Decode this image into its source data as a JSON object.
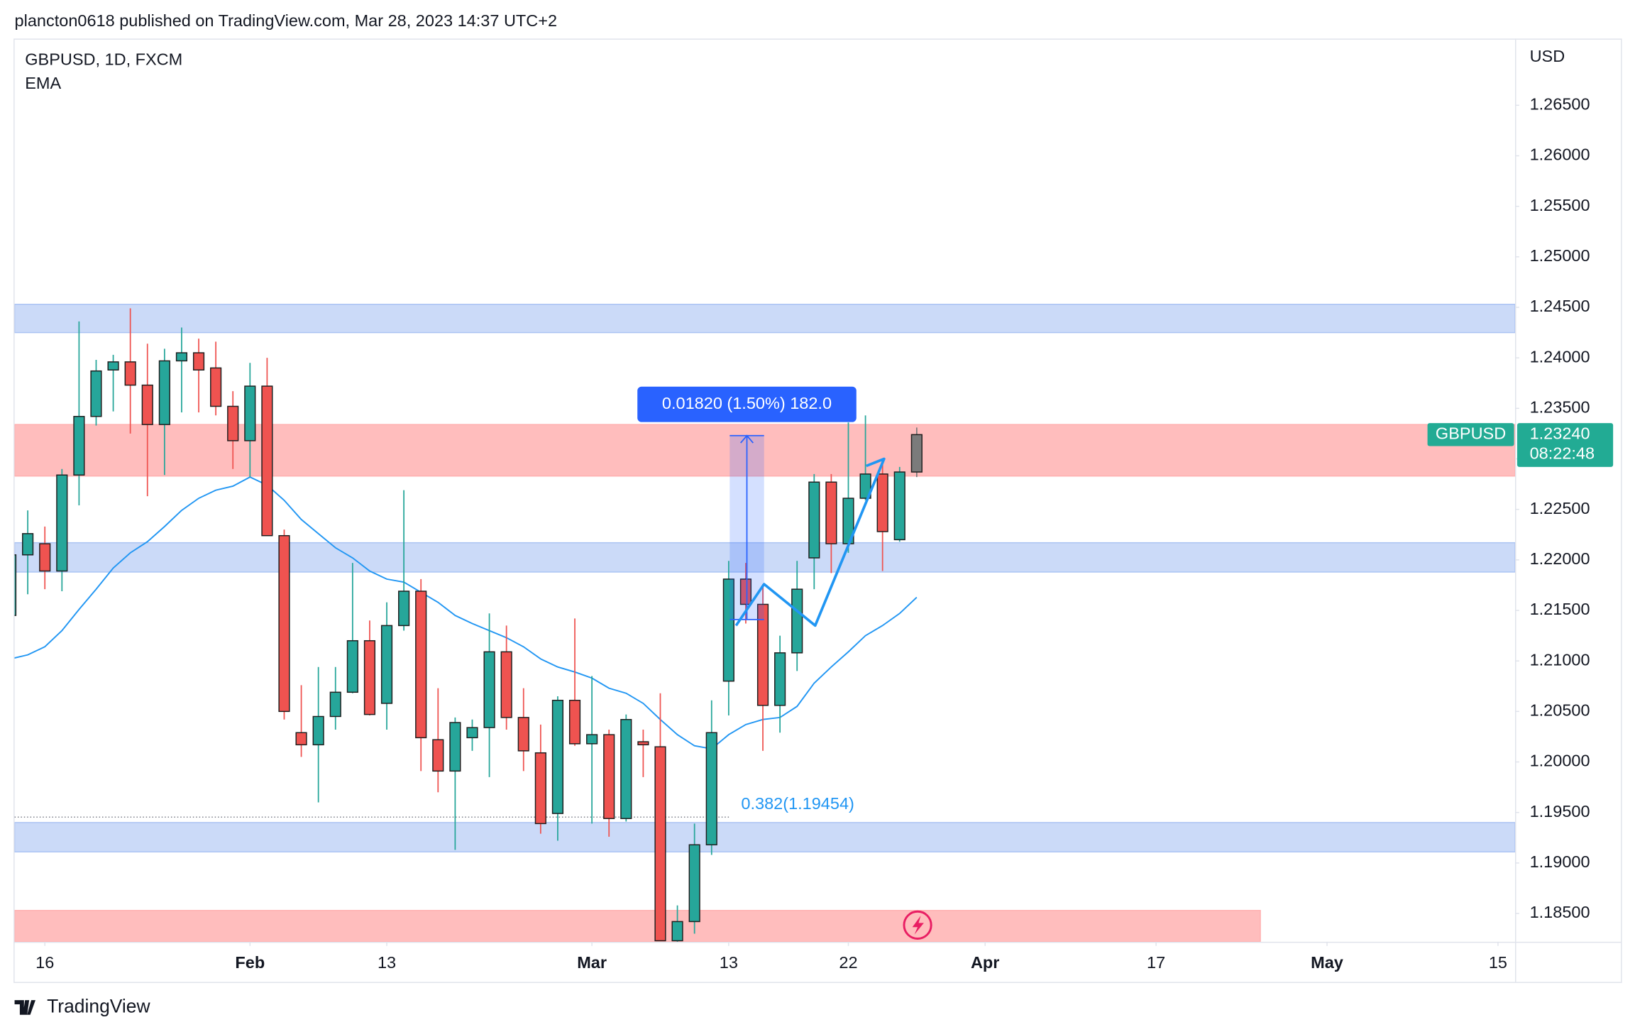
{
  "chart_data": {
    "type": "candlestick",
    "header": "plancton0618 published on TradingView.com, Mar 28, 2023 14:37 UTC+2",
    "title": "GBPUSD, 1D, FXCM",
    "indicator": "EMA",
    "currency": "USD",
    "brand": "TradingView",
    "categories": [
      null,
      null,
      "16",
      null,
      null,
      null,
      null,
      null,
      null,
      null,
      null,
      null,
      null,
      null,
      "Feb",
      null,
      null,
      null,
      null,
      null,
      null,
      null,
      "13",
      null,
      null,
      null,
      null,
      null,
      null,
      null,
      null,
      null,
      null,
      null,
      "Mar",
      null,
      null,
      null,
      null,
      null,
      null,
      null,
      "13",
      null,
      null,
      null,
      null,
      null,
      null,
      "22",
      null,
      null,
      null,
      null,
      null,
      null,
      null,
      "Apr",
      null,
      null,
      null,
      null,
      null,
      null,
      null,
      null,
      null,
      "17",
      null,
      null,
      null,
      null,
      null,
      null,
      null,
      null,
      null,
      "May",
      null,
      null,
      null,
      null,
      null,
      null,
      null,
      null,
      null,
      "15"
    ],
    "open": [
      1.2145,
      1.2205,
      1.2216,
      1.2189,
      1.2284,
      1.2342,
      1.2388,
      1.2396,
      1.2373,
      1.2334,
      1.2397,
      1.2405,
      1.239,
      1.2352,
      1.2318,
      1.2372,
      1.2224,
      1.2029,
      1.2017,
      1.2045,
      1.2069,
      1.212,
      1.2058,
      1.2135,
      1.2169,
      1.2022,
      1.1991,
      1.2024,
      1.2034,
      1.2109,
      1.2044,
      1.2009,
      1.1949,
      1.2061,
      1.2018,
      1.2027,
      1.1944,
      1.202,
      1.2015,
      1.1823,
      1.1842,
      1.1918,
      1.208,
      1.2181,
      1.2156,
      1.2056,
      1.2108,
      1.2202,
      1.2277,
      1.2216,
      1.2261,
      1.2285,
      1.222,
      1.2287,
      null,
      null,
      null,
      null,
      null,
      null,
      null,
      null,
      null,
      null,
      null,
      null,
      null,
      null,
      null,
      null,
      null,
      null,
      null,
      null,
      null,
      null,
      null,
      null,
      null,
      null,
      null,
      null,
      null,
      null,
      null,
      null,
      null,
      null
    ],
    "high": [
      1.2218,
      1.2249,
      1.2233,
      1.229,
      1.2436,
      1.2398,
      1.2403,
      1.2449,
      1.2414,
      1.2409,
      1.243,
      1.2419,
      1.2416,
      1.2367,
      1.2395,
      1.24,
      1.223,
      1.2076,
      1.2094,
      1.2094,
      1.2197,
      1.214,
      1.2158,
      1.2269,
      1.2181,
      1.2073,
      1.2044,
      1.2042,
      1.2147,
      1.2135,
      1.2073,
      1.2037,
      1.2065,
      1.2142,
      1.2085,
      1.2032,
      1.2047,
      1.2032,
      1.2068,
      1.1858,
      1.1939,
      1.2061,
      1.2199,
      1.2197,
      1.2176,
      1.2125,
      1.2199,
      1.2285,
      1.2285,
      1.2336,
      1.2343,
      1.23,
      1.2292,
      1.2331,
      null,
      null,
      null,
      null,
      null,
      null,
      null,
      null,
      null,
      null,
      null,
      null,
      null,
      null,
      null,
      null,
      null,
      null,
      null,
      null,
      null,
      null,
      null,
      null,
      null,
      null,
      null,
      null,
      null,
      null,
      null,
      null,
      null,
      null
    ],
    "low": [
      1.214,
      1.2166,
      1.2171,
      1.2169,
      1.2254,
      1.2333,
      1.2347,
      1.2325,
      1.2263,
      1.2284,
      1.2346,
      1.2346,
      1.2343,
      1.229,
      1.2282,
      1.2224,
      1.2042,
      1.2005,
      1.196,
      1.2032,
      1.2068,
      1.2046,
      1.2032,
      1.213,
      1.1991,
      1.197,
      1.1913,
      1.2011,
      1.1985,
      1.2032,
      1.1991,
      1.1929,
      1.1922,
      1.2016,
      1.1939,
      1.1926,
      1.1941,
      1.1985,
      1.1823,
      1.1821,
      1.183,
      1.1908,
      1.2046,
      1.2137,
      1.2011,
      1.2029,
      1.209,
      1.2171,
      1.2187,
      1.2207,
      1.2259,
      1.2189,
      1.2218,
      1.2282,
      null,
      null,
      null,
      null,
      null,
      null,
      null,
      null,
      null,
      null,
      null,
      null,
      null,
      null,
      null,
      null,
      null,
      null,
      null,
      null,
      null,
      null,
      null,
      null,
      null,
      null,
      null,
      null,
      null,
      null,
      null,
      null,
      null,
      null
    ],
    "close": [
      1.2205,
      1.2226,
      1.2189,
      1.2284,
      1.2342,
      1.2387,
      1.2396,
      1.2373,
      1.2334,
      1.2397,
      1.2405,
      1.2388,
      1.2352,
      1.2318,
      1.2372,
      1.2224,
      1.205,
      1.2017,
      1.2045,
      1.2069,
      1.212,
      1.2047,
      1.2135,
      1.2169,
      1.2024,
      1.1991,
      1.2039,
      1.2034,
      1.2109,
      1.2044,
      1.2011,
      1.1939,
      1.2061,
      1.2018,
      1.2027,
      1.1944,
      1.2042,
      1.2017,
      1.1823,
      1.1842,
      1.1918,
      1.2029,
      1.2181,
      1.2156,
      1.2056,
      1.2108,
      1.2171,
      1.2277,
      1.2216,
      1.2261,
      1.2285,
      1.2228,
      1.2287,
      1.2324,
      null,
      null,
      null,
      null,
      null,
      null,
      null,
      null,
      null,
      null,
      null,
      null,
      null,
      null,
      null,
      null,
      null,
      null,
      null,
      null,
      null,
      null,
      null,
      null,
      null,
      null,
      null,
      null,
      null,
      null,
      null,
      null,
      null,
      null
    ],
    "ema": {
      "color": "#2196f3",
      "values": [
        1.2102,
        1.2106,
        1.2114,
        1.213,
        1.2151,
        1.2171,
        1.2192,
        1.2207,
        1.2218,
        1.2233,
        1.2249,
        1.2261,
        1.2269,
        1.2273,
        1.2282,
        1.2274,
        1.2259,
        1.224,
        1.2226,
        1.2212,
        1.2202,
        1.2189,
        1.2181,
        1.2178,
        1.2168,
        1.2158,
        1.2145,
        1.2137,
        1.213,
        1.2123,
        1.2114,
        1.2102,
        1.2094,
        1.2089,
        1.2083,
        1.2073,
        1.2068,
        1.2058,
        1.2042,
        1.2027,
        1.2016,
        1.2013,
        1.2027,
        1.2037,
        1.2042,
        1.2044,
        1.2055,
        1.2078,
        1.2094,
        1.2109,
        1.2125,
        1.2135,
        1.2147,
        1.2163,
        null,
        null,
        null,
        null,
        null,
        null,
        null,
        null,
        null,
        null,
        null,
        null,
        null,
        null,
        null,
        null,
        null,
        null,
        null,
        null,
        null,
        null,
        null,
        null,
        null,
        null,
        null,
        null,
        null,
        null,
        null,
        null,
        null,
        null
      ]
    },
    "up_color": "#26a69a",
    "down_color": "#ef5350",
    "current_color": "#7b7b7b",
    "xlim": [
      0.23,
      88.0
    ],
    "ylim": [
      1.1822,
      1.2716
    ],
    "yticks": [
      {
        "value": 1.185,
        "label": "1.18500"
      },
      {
        "value": 1.19,
        "label": "1.19000"
      },
      {
        "value": 1.195,
        "label": "1.19500"
      },
      {
        "value": 1.2,
        "label": "1.20000"
      },
      {
        "value": 1.205,
        "label": "1.20500"
      },
      {
        "value": 1.21,
        "label": "1.21000"
      },
      {
        "value": 1.215,
        "label": "1.21500"
      },
      {
        "value": 1.22,
        "label": "1.22000"
      },
      {
        "value": 1.225,
        "label": "1.22500"
      },
      {
        "value": 1.23,
        "label": "1.23000"
      },
      {
        "value": 1.235,
        "label": "1.23500"
      },
      {
        "value": 1.24,
        "label": "1.24000"
      },
      {
        "value": 1.245,
        "label": "1.24500"
      },
      {
        "value": 1.25,
        "label": "1.25000"
      },
      {
        "value": 1.255,
        "label": "1.25500"
      },
      {
        "value": 1.26,
        "label": "1.26000"
      },
      {
        "value": 1.265,
        "label": "1.26500"
      }
    ],
    "zones": [
      {
        "low": 1.2425,
        "high": 1.2453,
        "color": "#cbdaf8"
      },
      {
        "low": 1.2283,
        "high": 1.2334,
        "color": "#ffbdbd"
      },
      {
        "low": 1.2188,
        "high": 1.2217,
        "color": "#cbdaf8"
      },
      {
        "low": 1.1911,
        "high": 1.194,
        "color": "#cbdaf8"
      },
      {
        "low": 1.1822,
        "high": 1.1853,
        "color": "#ffbdbd",
        "x_end": 73.1
      }
    ],
    "measure": {
      "label": "0.01820 (1.50%) 182.0",
      "from": 1.2141,
      "to": 1.2323,
      "x0": 42.06,
      "x1": 44.07
    },
    "fib": {
      "label": "0.382(1.19454)",
      "value": 1.19454,
      "x_end": 42.06,
      "color": "#2196f3"
    },
    "pattern": {
      "color": "#2196f3",
      "x": [
        42.43,
        44.07,
        47.06,
        51.09,
        50.05
      ],
      "y": [
        1.2135,
        1.2176,
        1.2135,
        1.23,
        1.2293
      ]
    },
    "last_price": {
      "symbol": "GBPUSD",
      "value": 1.2324,
      "label": "1.23240",
      "countdown": "08:22:48",
      "color": "#22ab94"
    }
  }
}
